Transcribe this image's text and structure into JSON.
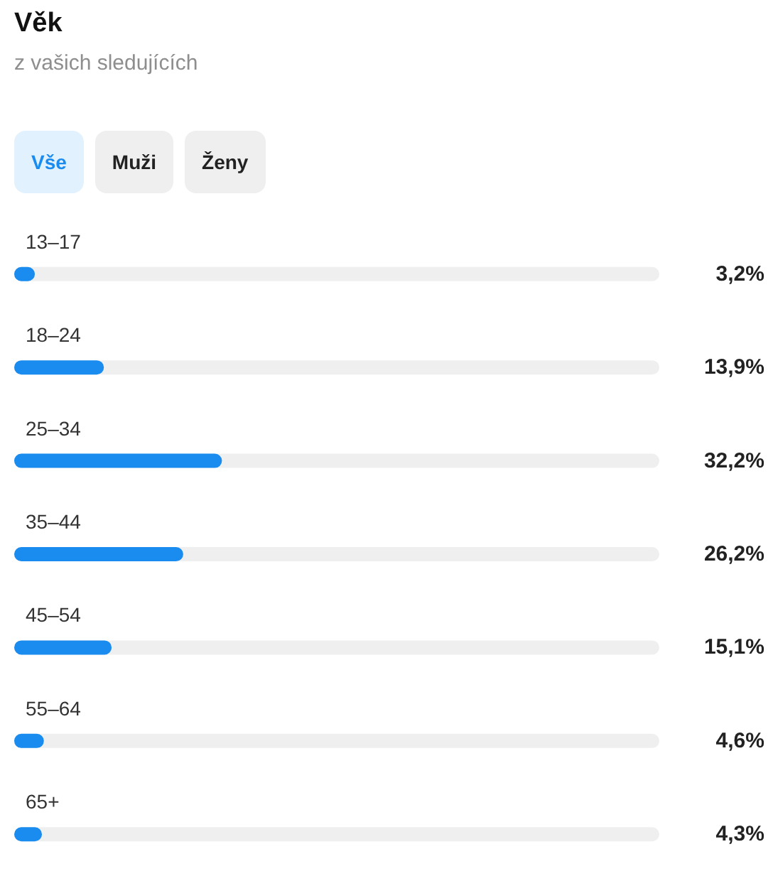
{
  "chart_data": {
    "type": "bar",
    "orientation": "horizontal",
    "title": "Věk",
    "subtitle": "z vašich sledujících",
    "annotations": [
      "Vše",
      "Muži",
      "Ženy"
    ],
    "categories": [
      "13–17",
      "18–24",
      "25–34",
      "35–44",
      "45–54",
      "55–64",
      "65+"
    ],
    "values": [
      3.2,
      13.9,
      32.2,
      26.2,
      15.1,
      4.6,
      4.3
    ],
    "value_labels": [
      "3,2%",
      "13,9%",
      "32,2%",
      "26,2%",
      "15,1%",
      "4,6%",
      "4,3%"
    ],
    "color": "#1a8cf0",
    "xlim": [
      0,
      100
    ],
    "tick_labels": false
  }
}
